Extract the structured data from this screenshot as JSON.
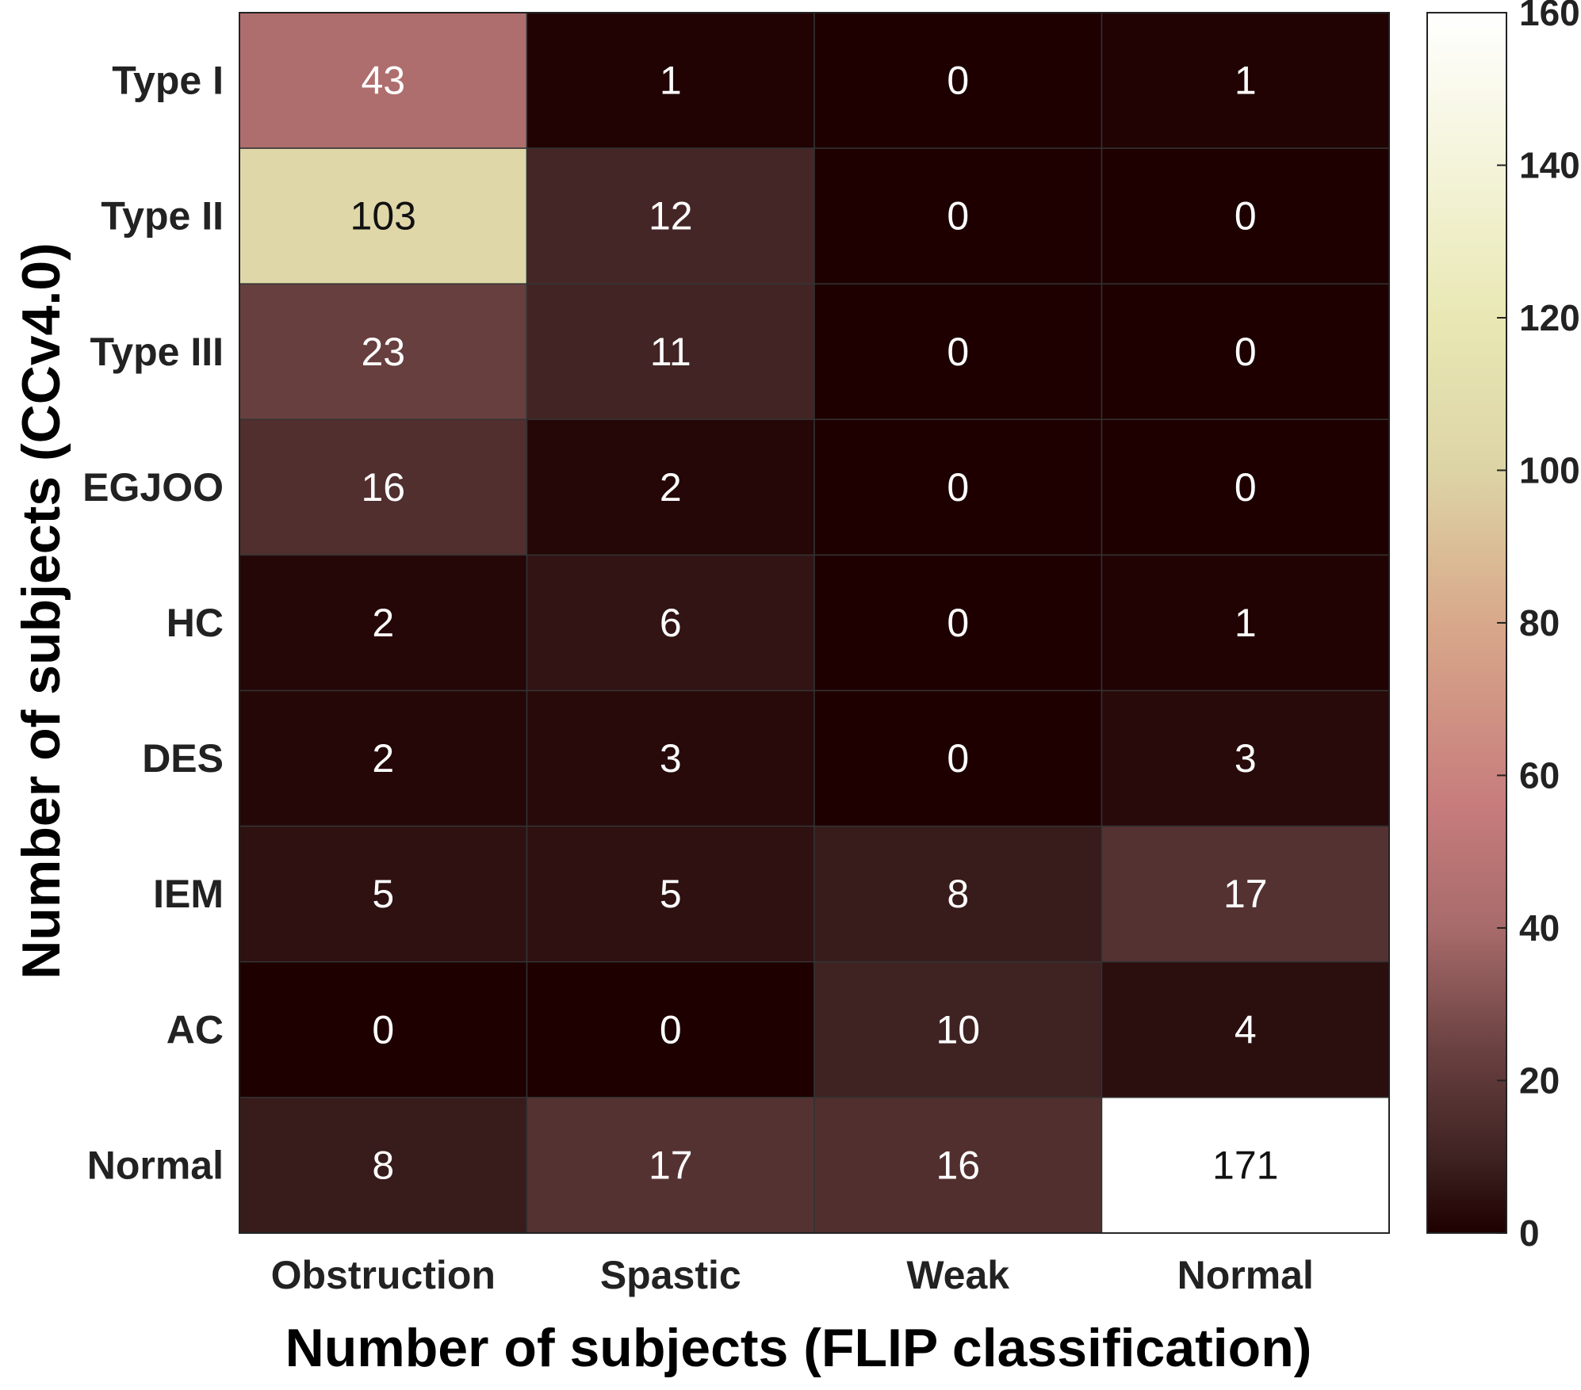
{
  "chart_data": {
    "type": "heatmap",
    "x_categories": [
      "Obstruction",
      "Spastic",
      "Weak",
      "Normal"
    ],
    "y_categories": [
      "Type I",
      "Type II",
      "Type III",
      "EGJOO",
      "HC",
      "DES",
      "IEM",
      "AC",
      "Normal"
    ],
    "values": [
      [
        43,
        1,
        0,
        1
      ],
      [
        103,
        12,
        0,
        0
      ],
      [
        23,
        11,
        0,
        0
      ],
      [
        16,
        2,
        0,
        0
      ],
      [
        2,
        6,
        0,
        1
      ],
      [
        2,
        3,
        0,
        3
      ],
      [
        5,
        5,
        8,
        17
      ],
      [
        0,
        0,
        10,
        4
      ],
      [
        8,
        17,
        16,
        171
      ]
    ],
    "xlabel": "Number of subjects (FLIP classification)",
    "ylabel": "Number of subjects (CCv4.0)",
    "colorbar": {
      "range": [
        0,
        160
      ],
      "ticks": [
        0,
        20,
        40,
        60,
        80,
        100,
        120,
        140,
        160
      ],
      "colors": [
        "#1e0000",
        "#3f2222",
        "#6a4141",
        "#a86b6b",
        "#c77c7c",
        "#d8a88a",
        "#ddd4a6",
        "#e9e8b4",
        "#ffffff"
      ],
      "color_stops": [
        0,
        0.0625,
        0.15,
        0.25,
        0.35,
        0.5,
        0.625,
        0.75,
        1
      ],
      "clip_above_max": true
    },
    "grid": true,
    "legend": "colorbar-right"
  }
}
